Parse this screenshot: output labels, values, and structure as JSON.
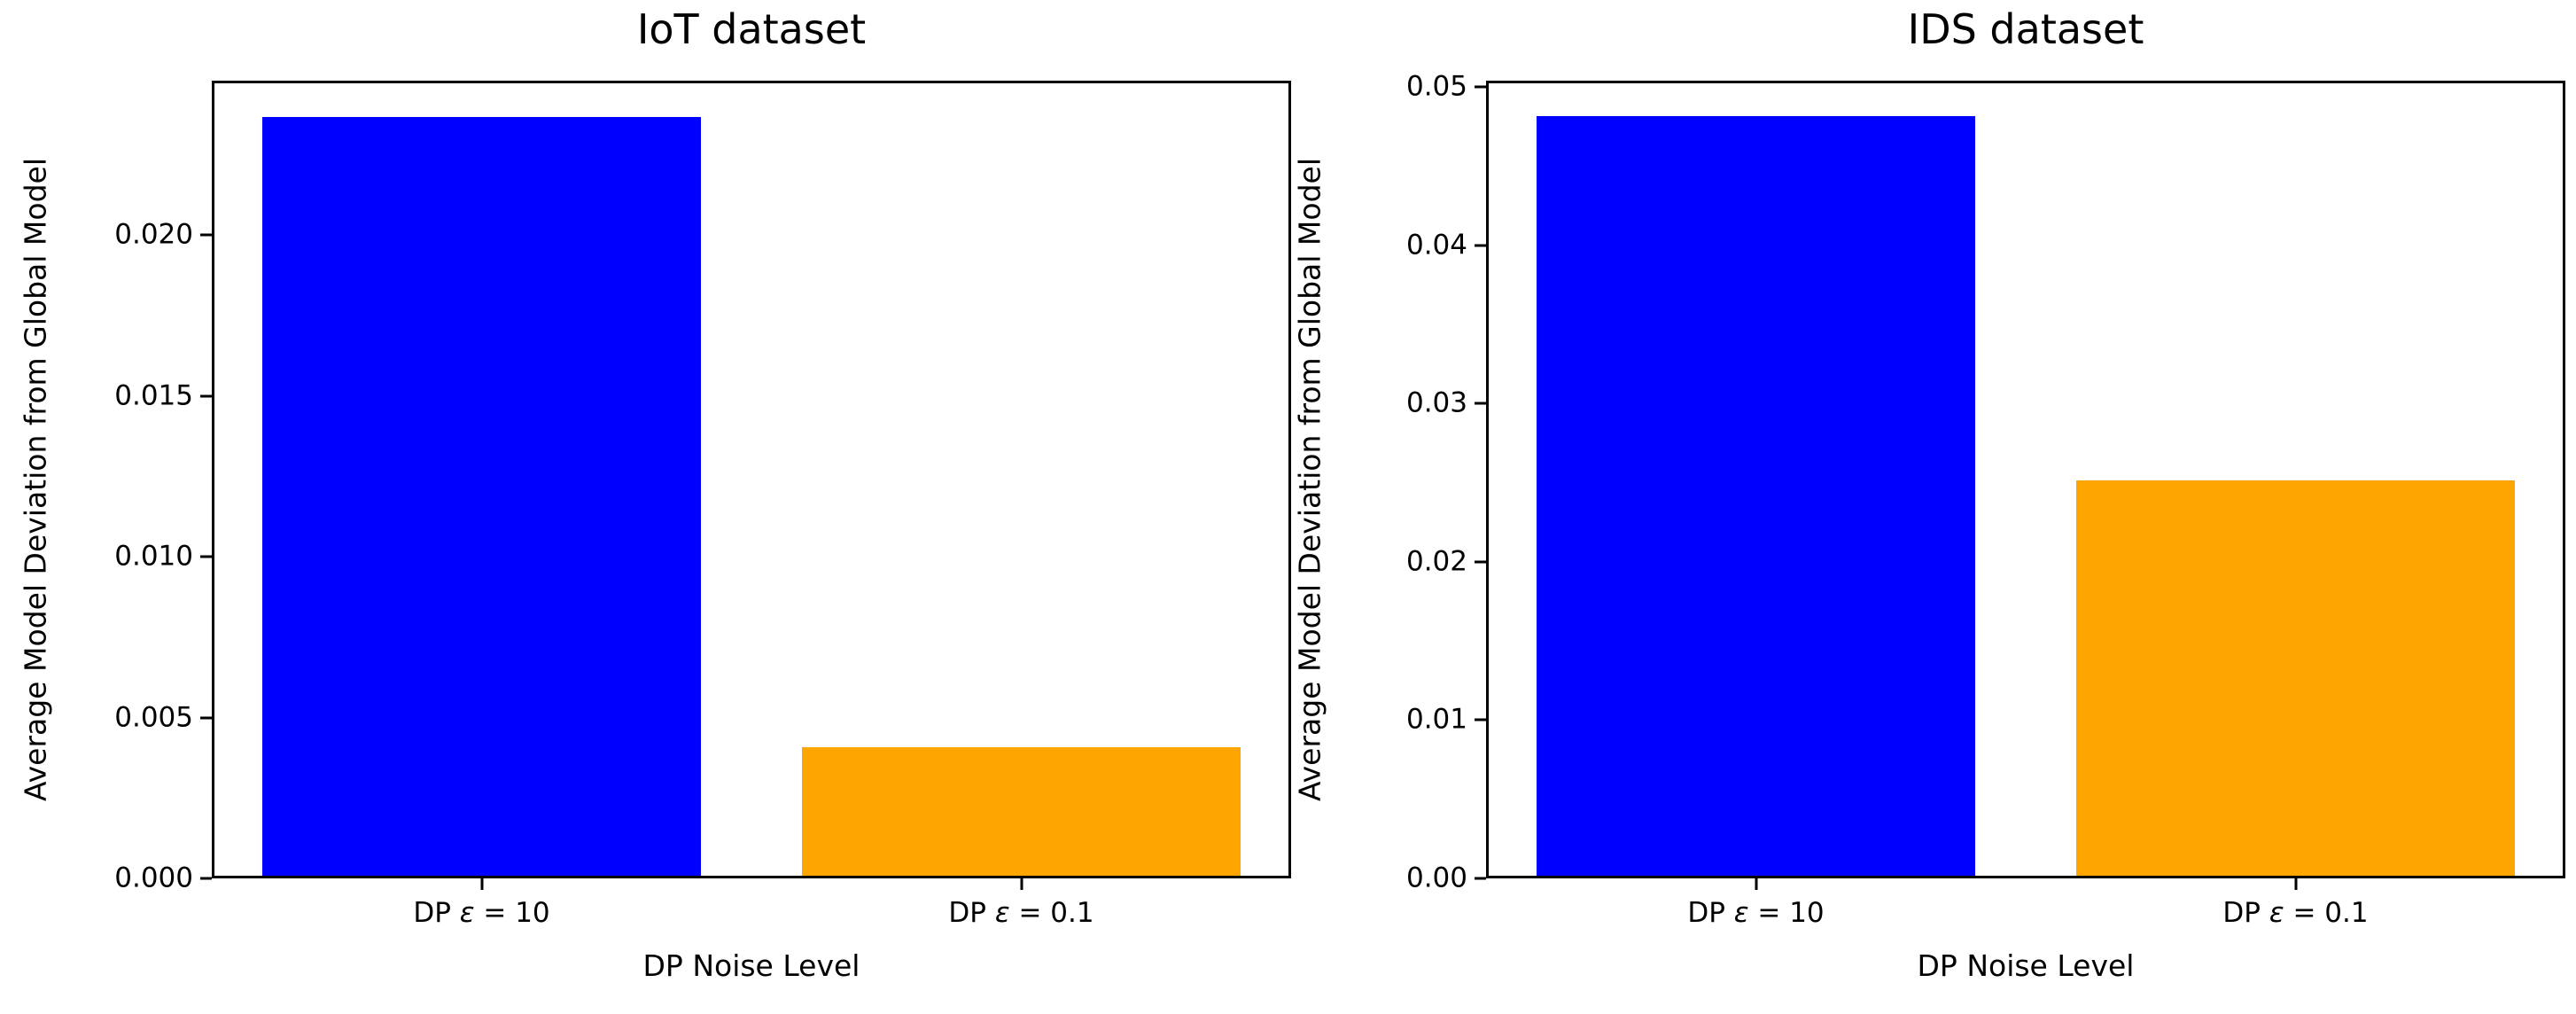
{
  "figure": {
    "background": "#ffffff",
    "text_color": "#000000"
  },
  "chart_data": [
    {
      "type": "bar",
      "title": "IoT dataset",
      "xlabel": "DP Noise Level",
      "ylabel": "Average Model Deviation from Global Model",
      "categories": [
        "DP ε = 10",
        "DP ε = 0.1"
      ],
      "values": [
        0.0236,
        0.004
      ],
      "bar_colors": [
        "#0000ff",
        "#ffa500"
      ],
      "ylim": [
        0,
        0.0248
      ],
      "ytick_labels": [
        "0.000",
        "0.005",
        "0.010",
        "0.015",
        "0.020"
      ],
      "grid": false,
      "legend": null
    },
    {
      "type": "bar",
      "title": "IDS dataset",
      "xlabel": "DP Noise Level",
      "ylabel": "Average Model Deviation from Global Model",
      "categories": [
        "DP ε = 10",
        "DP ε = 0.1"
      ],
      "values": [
        0.048,
        0.025
      ],
      "bar_colors": [
        "#0000ff",
        "#ffa500"
      ],
      "ylim": [
        0,
        0.0504
      ],
      "ytick_labels": [
        "0.00",
        "0.01",
        "0.02",
        "0.03",
        "0.04",
        "0.05"
      ],
      "grid": false,
      "legend": null
    }
  ]
}
